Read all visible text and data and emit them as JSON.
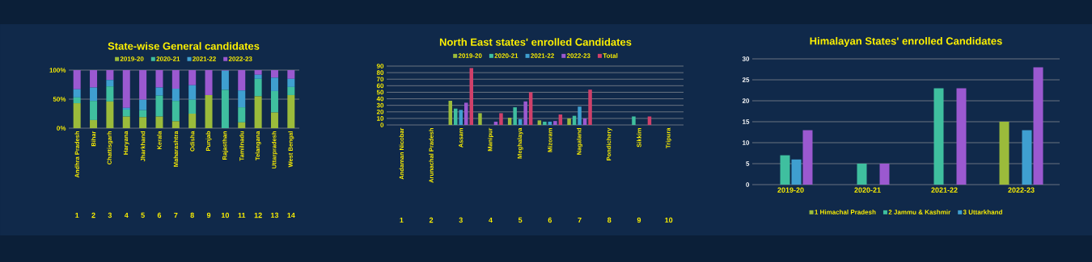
{
  "chart_data": [
    {
      "type": "bar",
      "title": "State-wise General candidates",
      "stacked": true,
      "categories": [
        "Andhra Pradesh",
        "Bihar",
        "Chattisgarh",
        "Haryana",
        "Jharkhand",
        "Kerala",
        "Maharashtra",
        "Odisha",
        "Punjab",
        "Rajasthan",
        "Tamilnadu",
        "Telangana",
        "Uttarpradesh",
        "West Bengal"
      ],
      "series": [
        {
          "name": "2019-20",
          "color": "#9bbb3b",
          "values": [
            43,
            14,
            46,
            20,
            19,
            20,
            12,
            25,
            57,
            0,
            10,
            55,
            27,
            57
          ]
        },
        {
          "name": "2020-21",
          "color": "#3fbf9f",
          "values": [
            10,
            33,
            26,
            12,
            12,
            36,
            35,
            24,
            0,
            66,
            26,
            30,
            37,
            14
          ]
        },
        {
          "name": "2021-22",
          "color": "#3f9fd0",
          "values": [
            14,
            23,
            11,
            3,
            18,
            14,
            21,
            25,
            0,
            33,
            29,
            7,
            23,
            14
          ]
        },
        {
          "name": "2022-23",
          "color": "#9b59d0",
          "values": [
            33,
            30,
            17,
            65,
            51,
            30,
            32,
            26,
            43,
            1,
            35,
            8,
            13,
            15
          ]
        }
      ],
      "ylim": [
        0,
        100
      ],
      "yticks": [
        {
          "value": 0,
          "label": "0%"
        },
        {
          "value": 50,
          "label": "50%"
        },
        {
          "value": 100,
          "label": "100%"
        }
      ],
      "grid": "y",
      "legend": "top",
      "annotations": [
        "1",
        "2",
        "3",
        "4",
        "5",
        "6",
        "7",
        "8",
        "9",
        "10",
        "11",
        "12",
        "13",
        "14"
      ]
    },
    {
      "type": "bar",
      "title": "North East states' enrolled Candidates",
      "categories": [
        "Andaman Nicobar",
        "Arunachal Pradesh",
        "Assam",
        "Manipur",
        "Meghalaya",
        "Mizoram",
        "Nagaland",
        "Pondichery",
        "Sikkim",
        "Tripura"
      ],
      "series": [
        {
          "name": "2019-20",
          "color": "#9bbb3b",
          "values": [
            0,
            0,
            37,
            18,
            11,
            7,
            10,
            0,
            0,
            0
          ]
        },
        {
          "name": "2020-21",
          "color": "#3fbf9f",
          "values": [
            0,
            0,
            25,
            0,
            27,
            5,
            14,
            0,
            13,
            0
          ]
        },
        {
          "name": "2021-22",
          "color": "#3f9fd0",
          "values": [
            0,
            0,
            23,
            0,
            9,
            5,
            28,
            0,
            0,
            0
          ]
        },
        {
          "name": "2022-23",
          "color": "#9b59d0",
          "values": [
            0,
            0,
            34,
            5,
            36,
            6,
            10,
            0,
            0,
            0
          ]
        },
        {
          "name": "Total",
          "color": "#d0406a",
          "values": [
            0,
            0,
            87,
            18,
            50,
            16,
            54,
            0,
            13,
            0
          ]
        }
      ],
      "ylim": [
        0,
        90
      ],
      "yticks": [
        0,
        10,
        20,
        30,
        40,
        50,
        60,
        70,
        80,
        90
      ],
      "grid": "y",
      "legend": "top",
      "annotations": [
        "1",
        "2",
        "3",
        "4",
        "5",
        "6",
        "7",
        "8",
        "9",
        "10"
      ]
    },
    {
      "type": "bar",
      "title": "Himalayan States' enrolled Candidates",
      "categories": [
        "2019-20",
        "2020-21",
        "2021-22",
        "2022-23"
      ],
      "series": [
        {
          "name": "1 Himachal Pradesh",
          "color": "#9bbb3b",
          "values": [
            null,
            null,
            null,
            15
          ]
        },
        {
          "name": "2 Jammu & Kashmir",
          "color": "#3fbf9f",
          "values": [
            7,
            5,
            23,
            null
          ]
        },
        {
          "name": "3 Uttarkhand",
          "color": "#3f9fd0",
          "values": [
            6,
            null,
            null,
            13
          ]
        },
        {
          "color": "#9b59d0",
          "values": [
            13,
            5,
            23,
            28
          ]
        }
      ],
      "ylim": [
        0,
        30
      ],
      "yticks": [
        0,
        5,
        10,
        15,
        20,
        25,
        30
      ],
      "grid": "y",
      "legend": "bottom"
    }
  ]
}
